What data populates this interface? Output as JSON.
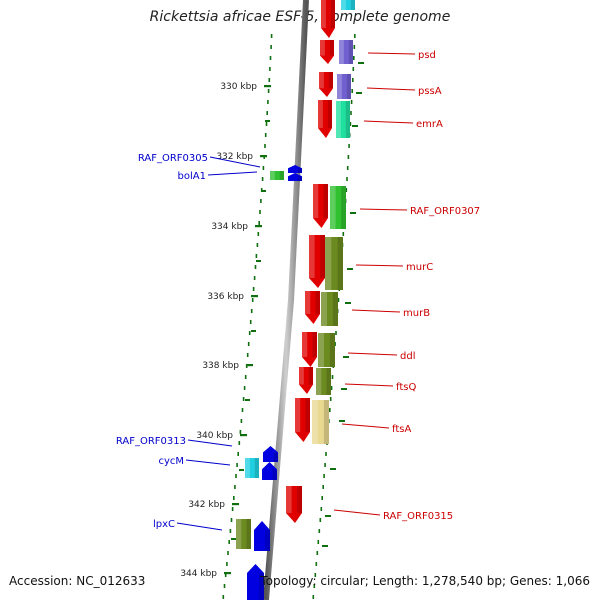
{
  "title": "Rickettsia africae ESF-5, complete genome",
  "footer": {
    "accession": "Accession: NC_012633",
    "summary": "Topology: circular; Length: 1,278,540 bp; Genes: 1,066"
  },
  "colors": {
    "red": "#e00000",
    "blue": "#0000e0",
    "purple": "#7060d0",
    "teal": "#20e0a0",
    "green": "#30c030",
    "olive": "#6b8a20",
    "khaki": "#e8d890",
    "cyan": "#20d0e0",
    "grey": "#888888",
    "tick": "#107010",
    "label_red": "#cc0000",
    "label_blue": "#0000cc"
  },
  "ruler_labels": [
    "330 kbp",
    "332 kbp",
    "334 kbp",
    "336 kbp",
    "338 kbp",
    "340 kbp",
    "342 kbp",
    "344 kbp"
  ],
  "genes_right": [
    "psd",
    "pssA",
    "emrA",
    "RAF_ORF0307",
    "murC",
    "murB",
    "ddl",
    "ftsQ",
    "ftsA",
    "RAF_ORF0315"
  ],
  "genes_left": [
    "RAF_ORF0305",
    "bolA1",
    "RAF_ORF0313",
    "cycM",
    "lpxC"
  ]
}
